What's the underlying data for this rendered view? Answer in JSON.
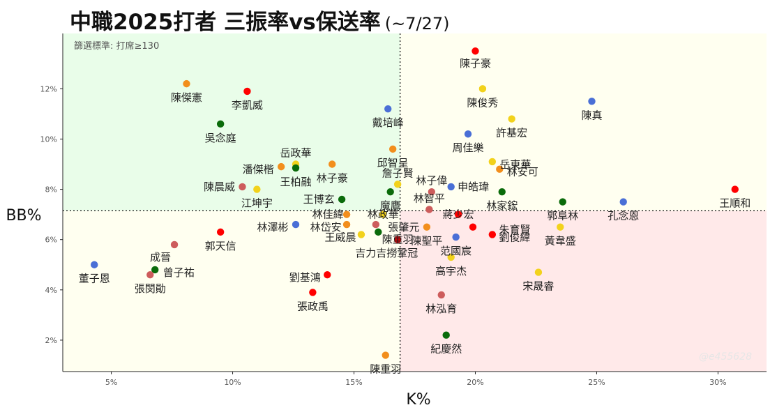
{
  "title": "中職2025打者 三振率vs保送率",
  "subtitle": "(~7/27)",
  "filter_note": "篩選標準: 打席≥130",
  "watermark": "@e455628",
  "colors": {
    "red": "#ff0000",
    "orange": "#f28e1c",
    "yellow": "#f2d21b",
    "green": "#0a6b0a",
    "blue": "#4a6fd6",
    "rose": "#cd5c5c",
    "quad_top_left": "#e9fde9",
    "quad_top_right": "#fffff0",
    "quad_bottom_left": "#fffff0",
    "quad_bottom_right": "#ffe9e9"
  },
  "chart_data": {
    "type": "scatter",
    "xlabel": "K%",
    "ylabel": "BB%",
    "xlim": [
      3,
      32
    ],
    "ylim": [
      0.75,
      14.2
    ],
    "xticks": [
      5,
      10,
      15,
      20,
      25,
      30
    ],
    "yticks": [
      2,
      4,
      6,
      8,
      10,
      12
    ],
    "x_tick_labels": [
      "5%",
      "10%",
      "15%",
      "20%",
      "25%",
      "30%"
    ],
    "y_tick_labels": [
      "2%",
      "4%",
      "6%",
      "8%",
      "10%",
      "12%"
    ],
    "reference_lines": {
      "x": 16.9,
      "y": 7.15
    },
    "grid": false,
    "points": [
      {
        "name": "陳子豪",
        "x": 20.0,
        "y": 13.5,
        "color": "red",
        "dx": 0,
        "dy": 18
      },
      {
        "name": "陳傑憲",
        "x": 8.1,
        "y": 12.2,
        "color": "orange",
        "dx": 0,
        "dy": 20
      },
      {
        "name": "李凱威",
        "x": 10.6,
        "y": 11.9,
        "color": "red",
        "dx": 0,
        "dy": 20
      },
      {
        "name": "陳俊秀",
        "x": 20.3,
        "y": 12.0,
        "color": "yellow",
        "dx": 0,
        "dy": 20
      },
      {
        "name": "陳真",
        "x": 24.8,
        "y": 11.5,
        "color": "blue",
        "dx": 0,
        "dy": 20
      },
      {
        "name": "戴培峰",
        "x": 16.4,
        "y": 11.2,
        "color": "blue",
        "dx": 0,
        "dy": 20
      },
      {
        "name": "許基宏",
        "x": 21.5,
        "y": 10.8,
        "color": "yellow",
        "dx": 0,
        "dy": 20
      },
      {
        "name": "吳念庭",
        "x": 9.5,
        "y": 10.6,
        "color": "green",
        "dx": 0,
        "dy": 20
      },
      {
        "name": "周佳樂",
        "x": 19.7,
        "y": 10.2,
        "color": "blue",
        "dx": 0,
        "dy": 20
      },
      {
        "name": "邱智呈",
        "x": 16.6,
        "y": 9.6,
        "color": "orange",
        "dx": 0,
        "dy": 20
      },
      {
        "name": "岳東華",
        "x": 20.7,
        "y": 9.1,
        "color": "yellow",
        "dx": 33,
        "dy": 4
      },
      {
        "name": "岳政華",
        "x": 12.6,
        "y": 9.0,
        "color": "yellow",
        "dx": 0,
        "dy": -16
      },
      {
        "name": "潘傑楷",
        "x": 12.0,
        "y": 8.9,
        "color": "orange",
        "dx": -33,
        "dy": 4
      },
      {
        "name": "林子豪",
        "x": 14.1,
        "y": 9.0,
        "color": "orange",
        "dx": 0,
        "dy": 20
      },
      {
        "name": "王柏融",
        "x": 12.6,
        "y": 8.85,
        "color": "green",
        "dx": 0,
        "dy": 20
      },
      {
        "name": "林安可",
        "x": 21.0,
        "y": 8.8,
        "color": "orange",
        "dx": 33,
        "dy": 4
      },
      {
        "name": "詹子賢",
        "x": 16.8,
        "y": 8.2,
        "color": "yellow",
        "dx": 0,
        "dy": -16
      },
      {
        "name": "林子偉",
        "x": 18.2,
        "y": 7.9,
        "color": "rose",
        "dx": 0,
        "dy": -16
      },
      {
        "name": "申皓瑋",
        "x": 19.0,
        "y": 8.1,
        "color": "blue",
        "dx": 32,
        "dy": 0
      },
      {
        "name": "陳晨威",
        "x": 10.4,
        "y": 8.1,
        "color": "rose",
        "dx": -33,
        "dy": 0
      },
      {
        "name": "江坤宇",
        "x": 11.0,
        "y": 8.0,
        "color": "yellow",
        "dx": 0,
        "dy": 20
      },
      {
        "name": "魔鷹",
        "x": 16.5,
        "y": 7.9,
        "color": "green",
        "dx": 0,
        "dy": 20
      },
      {
        "name": "林家鋐",
        "x": 21.1,
        "y": 7.9,
        "color": "green",
        "dx": 0,
        "dy": 20
      },
      {
        "name": "王順和",
        "x": 30.7,
        "y": 8.0,
        "color": "red",
        "dx": 0,
        "dy": 20
      },
      {
        "name": "王博玄",
        "x": 14.5,
        "y": 7.6,
        "color": "green",
        "dx": -33,
        "dy": 0
      },
      {
        "name": "郭阜林",
        "x": 23.6,
        "y": 7.5,
        "color": "green",
        "dx": 0,
        "dy": 20
      },
      {
        "name": "孔念恩",
        "x": 26.1,
        "y": 7.5,
        "color": "blue",
        "dx": 0,
        "dy": 20
      },
      {
        "name": "林智平",
        "x": 18.1,
        "y": 7.2,
        "color": "rose",
        "dx": 0,
        "dy": -16
      },
      {
        "name": "林佳緯",
        "x": 14.7,
        "y": 7.0,
        "color": "orange",
        "dx": -27,
        "dy": 0
      },
      {
        "name": "林政華",
        "x": 16.2,
        "y": 7.0,
        "color": "yellow",
        "dx": 0,
        "dy": 0
      },
      {
        "name": "蔣少宏",
        "x": 19.3,
        "y": 7.0,
        "color": "red",
        "dx": 0,
        "dy": 0
      },
      {
        "name": "林澤彬",
        "x": 12.6,
        "y": 6.6,
        "color": "blue",
        "dx": -33,
        "dy": 4
      },
      {
        "name": "林岱安",
        "x": 14.7,
        "y": 6.6,
        "color": "orange",
        "dx": -30,
        "dy": 4
      },
      {
        "name": "張肇元",
        "x": 15.9,
        "y": 6.6,
        "color": "rose",
        "dx": 40,
        "dy": 4
      },
      {
        "name": "朱育賢",
        "x": 19.9,
        "y": 6.5,
        "color": "red",
        "dx": 60,
        "dy": 4
      },
      {
        "name": "黃韋盛",
        "x": 23.5,
        "y": 6.5,
        "color": "yellow",
        "dx": 0,
        "dy": 20
      },
      {
        "name": "王威晨",
        "x": 15.3,
        "y": 6.2,
        "color": "yellow",
        "dx": -30,
        "dy": 4
      },
      {
        "name": "陳聖平",
        "x": 18.0,
        "y": 6.5,
        "color": "orange",
        "dx": 0,
        "dy": 20
      },
      {
        "name": "劉俊緯",
        "x": 20.7,
        "y": 6.2,
        "color": "red",
        "dx": 32,
        "dy": 4
      },
      {
        "name": "郭天信",
        "x": 9.5,
        "y": 6.3,
        "color": "red",
        "dx": 0,
        "dy": 20
      },
      {
        "name": "吉力吉撈鞏冠",
        "x": 16.0,
        "y": 6.3,
        "color": "green",
        "dx": 12,
        "dy": 30
      },
      {
        "name": "范國宸",
        "x": 19.2,
        "y": 6.1,
        "color": "blue",
        "dx": 0,
        "dy": 20
      },
      {
        "name": "陳重羽",
        "x": 16.8,
        "y": 6.0,
        "color": "red",
        "dx": 0,
        "dy": 0
      },
      {
        "name": "成晉",
        "x": 7.6,
        "y": 5.8,
        "color": "rose",
        "dx": -20,
        "dy": 18
      },
      {
        "name": "高宇杰",
        "x": 19.0,
        "y": 5.3,
        "color": "yellow",
        "dx": 0,
        "dy": 20
      },
      {
        "name": "董子恩",
        "x": 4.3,
        "y": 5.0,
        "color": "blue",
        "dx": 0,
        "dy": 20
      },
      {
        "name": "曾子祐",
        "x": 6.8,
        "y": 4.8,
        "color": "green",
        "dx": 34,
        "dy": 4
      },
      {
        "name": "張閔勛",
        "x": 6.6,
        "y": 4.6,
        "color": "rose",
        "dx": 0,
        "dy": 20
      },
      {
        "name": "劉基鴻",
        "x": 13.9,
        "y": 4.6,
        "color": "red",
        "dx": -32,
        "dy": 4
      },
      {
        "name": "宋晟睿",
        "x": 22.6,
        "y": 4.7,
        "color": "yellow",
        "dx": 0,
        "dy": 20
      },
      {
        "name": "張政禹",
        "x": 13.3,
        "y": 3.9,
        "color": "red",
        "dx": 0,
        "dy": 20
      },
      {
        "name": "林泓育",
        "x": 18.6,
        "y": 3.8,
        "color": "rose",
        "dx": 0,
        "dy": 20
      },
      {
        "name": "紀慶然",
        "x": 18.8,
        "y": 2.2,
        "color": "green",
        "dx": 0,
        "dy": 20
      },
      {
        "name": "陳重羽",
        "x": 16.3,
        "y": 1.4,
        "color": "orange",
        "dx": 0,
        "dy": 20
      }
    ]
  }
}
